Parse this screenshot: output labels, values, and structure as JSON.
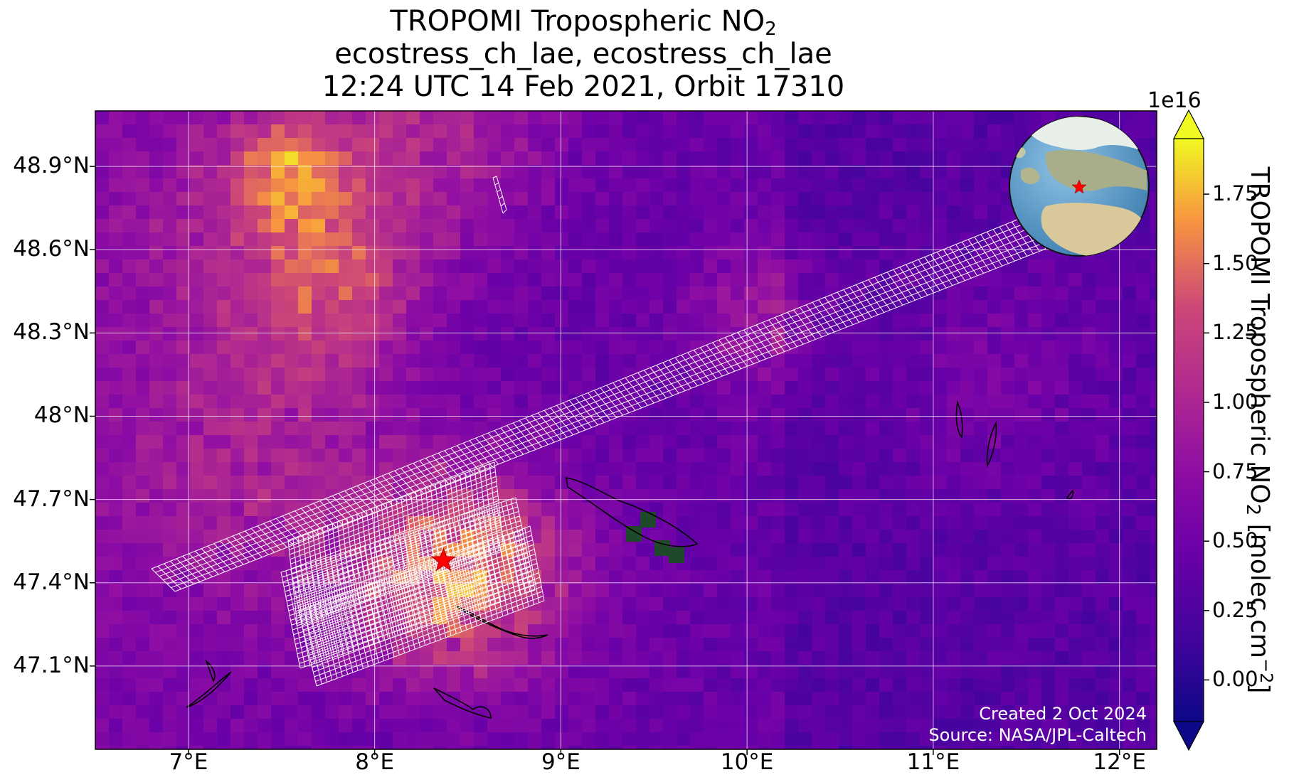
{
  "title": {
    "line1_prefix": "TROPOMI Tropospheric NO",
    "line1_sub": "2",
    "line2": "ecostress_ch_lae, ecostress_ch_lae",
    "line3": "12:24 UTC 14 Feb 2021, Orbit 17310"
  },
  "map": {
    "lon_range": [
      6.5,
      12.2
    ],
    "lat_range": [
      46.8,
      49.1
    ],
    "lon_ticks": [
      "7°E",
      "8°E",
      "9°E",
      "10°E",
      "11°E",
      "12°E"
    ],
    "lon_tick_values": [
      7,
      8,
      9,
      10,
      11,
      12
    ],
    "lat_ticks": [
      "48.9°N",
      "48.6°N",
      "48.3°N",
      "48°N",
      "47.7°N",
      "47.4°N",
      "47.1°N"
    ],
    "lat_tick_values": [
      48.9,
      48.6,
      48.3,
      48.0,
      47.7,
      47.4,
      47.1
    ],
    "gridlines": true,
    "site_marker": {
      "lon": 8.37,
      "lat": 47.48,
      "color": "#ff0000",
      "shape": "star"
    },
    "inset_globe": {
      "placement": "top-right",
      "marker_color": "#ff0000"
    }
  },
  "colorbar": {
    "label_prefix": "TROPOMI Tropospheric NO",
    "label_sub": "2",
    "label_suffix": " [molec cm",
    "label_sup": "−2",
    "label_end": "]",
    "exponent": "1e16",
    "ticks": [
      "1.75",
      "1.50",
      "1.25",
      "1.00",
      "0.75",
      "0.50",
      "0.25",
      "0.00"
    ],
    "tick_values": [
      1.75,
      1.5,
      1.25,
      1.0,
      0.75,
      0.5,
      0.25,
      0.0
    ],
    "range": [
      -0.15,
      1.95
    ],
    "colormap": "plasma",
    "extend": "both"
  },
  "credits": {
    "created": "Created 2 Oct 2024",
    "source": "Source: NASA/JPL-Caltech"
  }
}
